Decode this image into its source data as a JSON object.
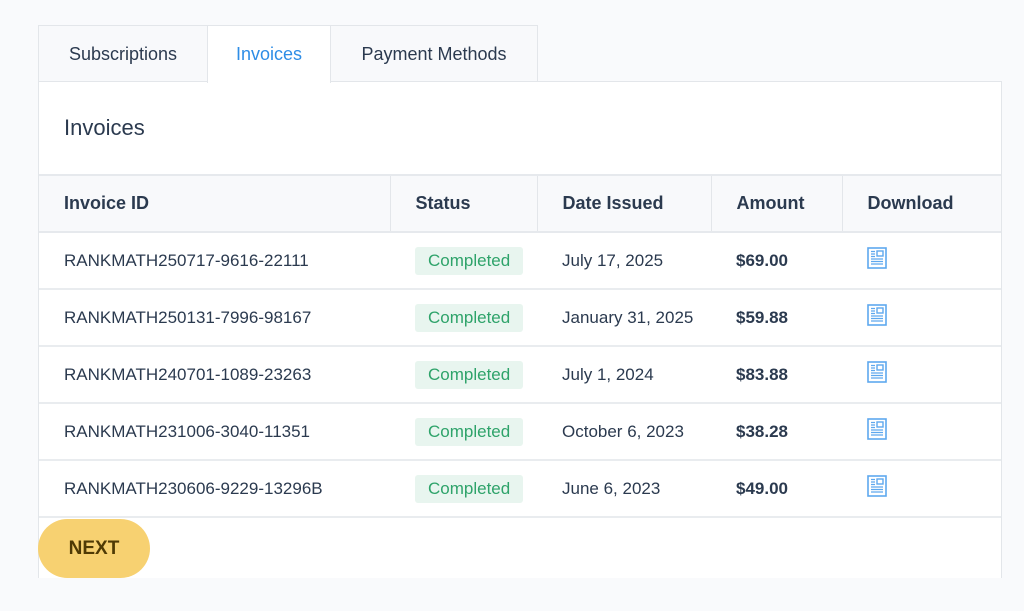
{
  "tabs": [
    {
      "label": "Subscriptions"
    },
    {
      "label": "Invoices",
      "active": true
    },
    {
      "label": "Payment Methods"
    }
  ],
  "panel": {
    "title": "Invoices"
  },
  "table": {
    "headers": [
      "Invoice ID",
      "Status",
      "Date Issued",
      "Amount",
      "Download"
    ],
    "rows": [
      {
        "id": "RANKMATH250717-9616-22111",
        "status": "Completed",
        "date": "July 17, 2025",
        "amount": "$69.00",
        "download_icon": "document-icon"
      },
      {
        "id": "RANKMATH250131-7996-98167",
        "status": "Completed",
        "date": "January 31, 2025",
        "amount": "$59.88",
        "download_icon": "document-icon"
      },
      {
        "id": "RANKMATH240701-1089-23263",
        "status": "Completed",
        "date": "July 1, 2024",
        "amount": "$83.88",
        "download_icon": "document-icon"
      },
      {
        "id": "RANKMATH231006-3040-11351",
        "status": "Completed",
        "date": "October 6, 2023",
        "amount": "$38.28",
        "download_icon": "document-icon"
      },
      {
        "id": "RANKMATH230606-9229-13296B",
        "status": "Completed",
        "date": "June 6, 2023",
        "amount": "$49.00",
        "download_icon": "document-icon"
      }
    ]
  },
  "pagination": {
    "next_label": "NEXT"
  },
  "colors": {
    "accent": "#2e8de6",
    "badge_text": "#2ea36a",
    "badge_bg": "#e8f5ef",
    "next_button": "#f7d171"
  }
}
